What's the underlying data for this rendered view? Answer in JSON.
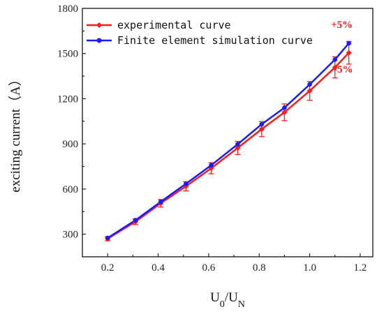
{
  "chart_data": {
    "type": "line",
    "xlabel_main": "U",
    "xlabel_sub0": "0",
    "xlabel_sep": "/U",
    "xlabel_subN": "N",
    "ylabel": "exciting current（A）",
    "xlim": [
      0.1,
      1.25
    ],
    "ylim": [
      150,
      1800
    ],
    "x_ticks": [
      "0.2",
      "0.4",
      "0.6",
      "0.8",
      "1.0",
      "1.2"
    ],
    "x_tick_values": [
      0.2,
      0.4,
      0.6,
      0.8,
      1.0,
      1.2
    ],
    "y_ticks": [
      "300",
      "600",
      "900",
      "1200",
      "1500",
      "1800"
    ],
    "y_tick_values": [
      300,
      600,
      900,
      1200,
      1500,
      1800
    ],
    "legend_position": "top-left",
    "series": [
      {
        "name": "experimental curve",
        "color": "#ff1a1a",
        "marker": "diamond",
        "x": [
          0.2,
          0.31,
          0.41,
          0.51,
          0.61,
          0.715,
          0.81,
          0.9,
          1.0,
          1.1,
          1.155
        ],
        "y": [
          270,
          383,
          505,
          618,
          738,
          873,
          998,
          1110,
          1252,
          1408,
          1505
        ]
      },
      {
        "name": "Finite element simulation curve",
        "color": "#1a1aff",
        "marker": "circle",
        "x": [
          0.2,
          0.31,
          0.41,
          0.51,
          0.61,
          0.715,
          0.81,
          0.9,
          1.0,
          1.1,
          1.155
        ],
        "y": [
          275,
          393,
          515,
          635,
          758,
          898,
          1030,
          1140,
          1295,
          1460,
          1568
        ]
      }
    ],
    "error_bar_fraction": 0.05,
    "annotations": [
      {
        "text": "+5%",
        "color": "#ff1a1a"
      },
      {
        "text": "-5%",
        "color": "#ff1a1a"
      }
    ]
  }
}
